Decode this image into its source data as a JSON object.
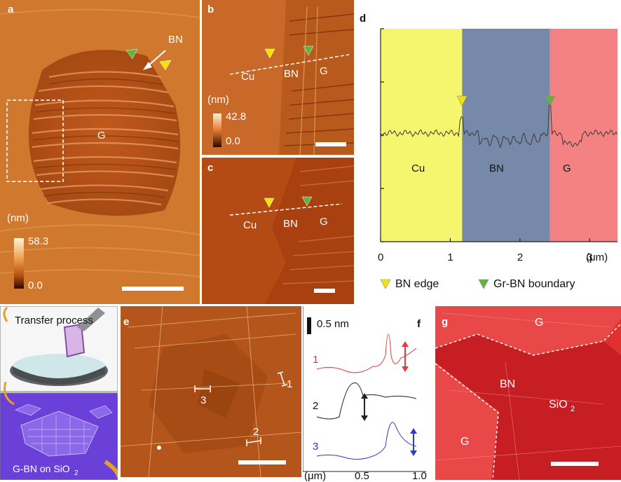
{
  "panel_a": {
    "label": "a",
    "bn_label": "BN",
    "g_label": "G",
    "unit": "(nm)",
    "cb_max": "58.3",
    "cb_min": "0.0"
  },
  "panel_b": {
    "label": "b",
    "cu_label": "Cu",
    "bn_label": "BN",
    "g_label": "G",
    "unit": "(nm)",
    "cb_max": "42.8",
    "cb_min": "0.0"
  },
  "panel_c": {
    "label": "c",
    "cu_label": "Cu",
    "bn_label": "BN",
    "g_label": "G"
  },
  "panel_d": {
    "label": "d",
    "region_cu": "Cu",
    "region_bn": "BN",
    "region_g": "G",
    "x_unit": "(μm)",
    "ticks": [
      "0",
      "1",
      "2",
      "3"
    ],
    "legend_bn_edge": "BN edge",
    "legend_boundary": "Gr-BN boundary",
    "colors": {
      "cu": "#f6f56e",
      "bn": "#7689a8",
      "g": "#f58283",
      "yellow_marker": "#f2e400",
      "green_marker": "#62b33f"
    }
  },
  "panel_transfer": {
    "title": "Transfer process",
    "caption_main": "G-BN on SiO",
    "caption_sub": "2"
  },
  "panel_e": {
    "label": "e",
    "markers": [
      "1",
      "2",
      "3"
    ]
  },
  "panel_f": {
    "label": "f",
    "scale": "0.5 nm",
    "trace_labels": [
      "1",
      "2",
      "3"
    ],
    "x_unit": "(μm)",
    "ticks": [
      "0.5",
      "1.0"
    ],
    "colors": {
      "trace1": "#e8383a",
      "trace2": "#222222",
      "trace3": "#2b3ccf"
    }
  },
  "panel_g": {
    "label": "g",
    "g_top": "G",
    "bn": "BN",
    "sio2_main": "SiO",
    "sio2_sub": "2",
    "g_left": "G"
  },
  "chart_data": {
    "type": "area",
    "title": "",
    "xlabel": "(μm)",
    "ylabel": "",
    "xlim": [
      0,
      3.4
    ],
    "xticks": [
      0,
      1,
      2,
      3
    ],
    "regions": [
      {
        "name": "Cu",
        "x": [
          0,
          1.17
        ]
      },
      {
        "name": "BN",
        "x": [
          1.17,
          2.43
        ]
      },
      {
        "name": "G",
        "x": [
          2.43,
          3.4
        ]
      }
    ],
    "markers": [
      {
        "name": "BN edge",
        "x": 1.17
      },
      {
        "name": "Gr-BN boundary",
        "x": 2.43
      }
    ]
  }
}
